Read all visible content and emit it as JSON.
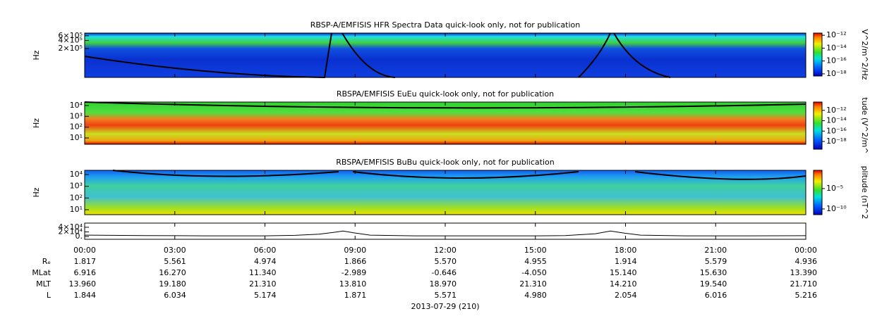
{
  "panels": [
    {
      "title": "RBSP-A/EMFISIS  HFR Spectra Data quick-look only, not for publication",
      "y_label": "Hz",
      "log": true,
      "ylim": [
        16400,
        760000
      ],
      "yticks": [
        {
          "value": 600000,
          "label": "6×10⁵"
        },
        {
          "value": 400000,
          "label": "4×10⁵"
        },
        {
          "value": 200000,
          "label": "2×10⁵"
        }
      ],
      "colorbar": {
        "label": "V^2/m^2/Hz",
        "log": true,
        "lim": [
          4.6e-19,
          2.2e-12
        ],
        "ticks": [
          {
            "value": 1e-12,
            "label": "10⁻¹²"
          },
          {
            "value": 1e-14,
            "label": "10⁻¹⁴"
          },
          {
            "value": 1e-16,
            "label": "10⁻¹⁶"
          },
          {
            "value": 1e-18,
            "label": "10⁻¹⁸"
          }
        ]
      }
    },
    {
      "title": "RBSPA/EMFISIS  EuEu quick-look only, not for publication",
      "y_label": "Hz",
      "log": true,
      "ylim": [
        2.6,
        21000
      ],
      "yticks": [
        {
          "value": 10000,
          "label": "10⁴"
        },
        {
          "value": 1000,
          "label": "10³"
        },
        {
          "value": 100,
          "label": "10²"
        },
        {
          "value": 10,
          "label": "10¹"
        }
      ],
      "colorbar": {
        "label": "tude (V^2/m^",
        "log": true,
        "lim": [
          3.2e-20,
          4e-11
        ],
        "ticks": [
          {
            "value": 1e-12,
            "label": "10⁻¹²"
          },
          {
            "value": 1e-14,
            "label": "10⁻¹⁴"
          },
          {
            "value": 1e-16,
            "label": "10⁻¹⁶"
          },
          {
            "value": 1e-18,
            "label": "10⁻¹⁸"
          }
        ]
      }
    },
    {
      "title": "RBSPA/EMFISIS  BuBu quick-look only, not for publication",
      "y_label": "Hz",
      "log": true,
      "ylim": [
        3.8,
        23000
      ],
      "yticks": [
        {
          "value": 10000,
          "label": "10⁴"
        },
        {
          "value": 1000,
          "label": "10³"
        },
        {
          "value": 100,
          "label": "10²"
        },
        {
          "value": 10,
          "label": "10¹"
        }
      ],
      "colorbar": {
        "label": "plitude (nT^2",
        "log": true,
        "lim": [
          4e-12,
          0.3
        ],
        "ticks": [
          {
            "value": 1e-05,
            "label": "10⁻⁵"
          },
          {
            "value": 1e-10,
            "label": "10⁻¹⁰"
          }
        ]
      }
    }
  ],
  "trace": {
    "ylim": [
      -12000,
      58000
    ],
    "yticks": [
      {
        "value": 40000,
        "label": "4×10⁴"
      },
      {
        "value": 20000,
        "label": "2×10⁴"
      },
      {
        "value": 0,
        "label": "0."
      }
    ],
    "x_hours": [
      0,
      2,
      4,
      6,
      7,
      7.8,
      8.3,
      8.6,
      9,
      9.5,
      11,
      13,
      15,
      16,
      17,
      17.5,
      18,
      18.5,
      20,
      22,
      24
    ],
    "values": [
      6000,
      4000,
      3000,
      3000,
      5000,
      10000,
      18000,
      24000,
      15000,
      6000,
      3000,
      3000,
      3000,
      4000,
      12000,
      24000,
      14000,
      6000,
      3000,
      3000,
      3500
    ]
  },
  "xlim_hours": [
    0,
    24
  ],
  "time_labels": [
    "00:00",
    "03:00",
    "06:00",
    "09:00",
    "12:00",
    "15:00",
    "18:00",
    "21:00",
    "00:00"
  ],
  "ephemeris": [
    {
      "label": "Rₑ",
      "values": [
        "1.817",
        "5.561",
        "4.974",
        "1.866",
        "5.570",
        "4.955",
        "1.914",
        "5.579",
        "4.936"
      ]
    },
    {
      "label": "MLat",
      "values": [
        "6.916",
        "16.270",
        "11.340",
        "-2.989",
        "-0.646",
        "-4.050",
        "15.140",
        "15.630",
        "13.390"
      ]
    },
    {
      "label": "MLT",
      "values": [
        "13.960",
        "19.180",
        "21.310",
        "13.810",
        "18.970",
        "21.310",
        "14.210",
        "19.540",
        "21.710"
      ]
    },
    {
      "label": "L",
      "values": [
        "1.844",
        "6.034",
        "5.174",
        "1.871",
        "5.571",
        "4.980",
        "2.054",
        "6.016",
        "5.216"
      ]
    }
  ],
  "date": "2013-07-29 (210)"
}
